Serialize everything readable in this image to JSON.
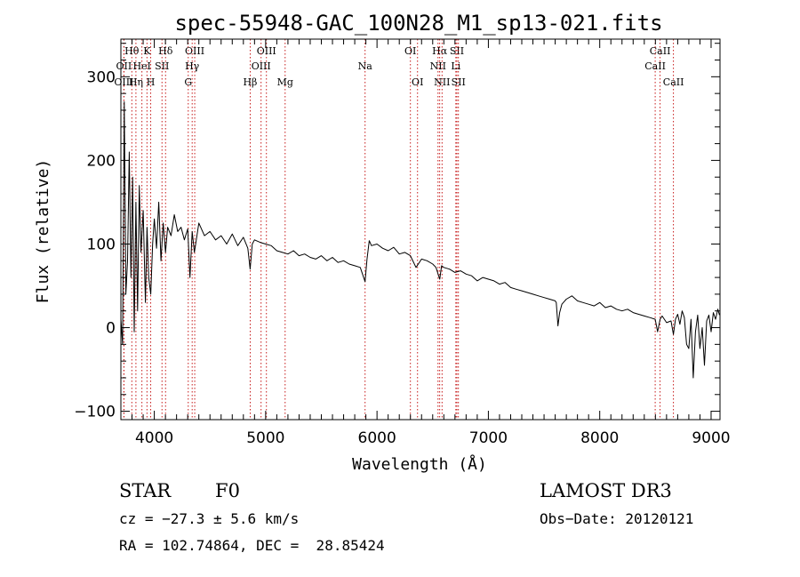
{
  "chart_data": {
    "type": "line",
    "title": "spec-55948-GAC_100N28_M1_sp13-021.fits",
    "xlabel": "Wavelength (Å)",
    "ylabel": "Flux (relative)",
    "xlim": [
      3700,
      9080
    ],
    "ylim": [
      -110,
      345
    ],
    "x_ticks": [
      4000,
      5000,
      6000,
      7000,
      8000,
      9000
    ],
    "y_ticks": [
      -100,
      0,
      100,
      200,
      300
    ],
    "x_tick_labels": [
      "4000",
      "5000",
      "6000",
      "7000",
      "8000",
      "9000"
    ],
    "y_tick_labels": [
      "−100",
      "0",
      "100",
      "200",
      "300"
    ],
    "series": [
      {
        "name": "Flux",
        "x": [
          3700,
          3715,
          3730,
          3745,
          3760,
          3775,
          3790,
          3805,
          3820,
          3835,
          3850,
          3865,
          3880,
          3900,
          3920,
          3935,
          3950,
          3968,
          3985,
          4000,
          4020,
          4040,
          4060,
          4080,
          4101,
          4120,
          4150,
          4180,
          4210,
          4240,
          4270,
          4300,
          4320,
          4340,
          4360,
          4400,
          4450,
          4500,
          4550,
          4600,
          4650,
          4700,
          4750,
          4800,
          4840,
          4861,
          4880,
          4900,
          4950,
          5000,
          5050,
          5100,
          5150,
          5200,
          5250,
          5300,
          5350,
          5400,
          5450,
          5500,
          5550,
          5600,
          5650,
          5700,
          5750,
          5800,
          5850,
          5893,
          5910,
          5930,
          5950,
          6000,
          6050,
          6100,
          6150,
          6200,
          6250,
          6300,
          6350,
          6400,
          6450,
          6500,
          6530,
          6563,
          6580,
          6600,
          6650,
          6700,
          6750,
          6800,
          6850,
          6900,
          6950,
          7000,
          7050,
          7100,
          7150,
          7200,
          7250,
          7300,
          7350,
          7400,
          7450,
          7500,
          7550,
          7600,
          7610,
          7625,
          7640,
          7660,
          7700,
          7750,
          7800,
          7850,
          7900,
          7950,
          8000,
          8050,
          8100,
          8150,
          8200,
          8250,
          8300,
          8350,
          8400,
          8450,
          8498,
          8520,
          8542,
          8560,
          8600,
          8640,
          8662,
          8680,
          8700,
          8720,
          8740,
          8760,
          8780,
          8800,
          8820,
          8840,
          8860,
          8880,
          8900,
          8920,
          8940,
          8960,
          8980,
          9000,
          9020,
          9040,
          9060,
          9075
        ],
        "y": [
          10,
          -20,
          270,
          40,
          80,
          210,
          60,
          180,
          -5,
          150,
          20,
          170,
          90,
          140,
          30,
          120,
          60,
          40,
          100,
          130,
          95,
          150,
          80,
          125,
          90,
          120,
          110,
          135,
          115,
          120,
          105,
          118,
          60,
          115,
          90,
          125,
          110,
          115,
          105,
          110,
          100,
          112,
          98,
          108,
          95,
          70,
          100,
          105,
          102,
          100,
          98,
          92,
          90,
          88,
          92,
          86,
          88,
          84,
          82,
          86,
          80,
          84,
          78,
          80,
          76,
          74,
          72,
          55,
          82,
          104,
          98,
          100,
          95,
          92,
          96,
          88,
          90,
          86,
          72,
          82,
          80,
          76,
          72,
          58,
          74,
          72,
          70,
          66,
          68,
          64,
          62,
          56,
          60,
          58,
          56,
          52,
          54,
          48,
          46,
          44,
          42,
          40,
          38,
          36,
          34,
          32,
          30,
          2,
          18,
          28,
          34,
          38,
          32,
          30,
          28,
          26,
          30,
          24,
          26,
          22,
          20,
          22,
          18,
          16,
          14,
          12,
          10,
          -5,
          10,
          14,
          6,
          8,
          -8,
          10,
          16,
          4,
          20,
          12,
          -20,
          -25,
          10,
          -60,
          -5,
          15,
          -25,
          0,
          -45,
          8,
          15,
          -5,
          18,
          10,
          22,
          15
        ]
      }
    ],
    "spectral_lines": [
      {
        "label": "Hθ",
        "wavelength": 3798,
        "row": 1
      },
      {
        "label": "OII",
        "wavelength": 3727,
        "row": 2
      },
      {
        "label": "OIII",
        "wavelength": 3727,
        "row": 3
      },
      {
        "label": "HeI",
        "wavelength": 3889,
        "row": 2
      },
      {
        "label": "Hη",
        "wavelength": 3835,
        "row": 3
      },
      {
        "label": "K",
        "wavelength": 3934,
        "row": 1
      },
      {
        "label": "SII",
        "wavelength": 4069,
        "row": 2
      },
      {
        "label": "H",
        "wavelength": 3968,
        "row": 3
      },
      {
        "label": "Hδ",
        "wavelength": 4101,
        "row": 1
      },
      {
        "label": "OIII",
        "wavelength": 4363,
        "row": 1
      },
      {
        "label": "Hγ",
        "wavelength": 4340,
        "row": 2
      },
      {
        "label": "G",
        "wavelength": 4305,
        "row": 3
      },
      {
        "label": "OIII",
        "wavelength": 5007,
        "row": 1
      },
      {
        "label": "OIII",
        "wavelength": 4959,
        "row": 2
      },
      {
        "label": "Hβ",
        "wavelength": 4861,
        "row": 3
      },
      {
        "label": "Mg",
        "wavelength": 5175,
        "row": 3
      },
      {
        "label": "Na",
        "wavelength": 5893,
        "row": 2
      },
      {
        "label": "OI",
        "wavelength": 6300,
        "row": 1
      },
      {
        "label": "OI",
        "wavelength": 6364,
        "row": 3
      },
      {
        "label": "Hα",
        "wavelength": 6563,
        "row": 1
      },
      {
        "label": "NII",
        "wavelength": 6548,
        "row": 2
      },
      {
        "label": "NII",
        "wavelength": 6584,
        "row": 3
      },
      {
        "label": "SII",
        "wavelength": 6717,
        "row": 1
      },
      {
        "label": "Li",
        "wavelength": 6708,
        "row": 2
      },
      {
        "label": "SII",
        "wavelength": 6731,
        "row": 3
      },
      {
        "label": "CaII",
        "wavelength": 8542,
        "row": 1
      },
      {
        "label": "CaII",
        "wavelength": 8498,
        "row": 2
      },
      {
        "label": "CaII",
        "wavelength": 8662,
        "row": 3
      }
    ]
  },
  "info": {
    "object_class": "STAR",
    "subclass": "F0",
    "survey": "LAMOST DR3",
    "redshift": "cz = −27.3 ± 5.6 km/s",
    "obs_date": "Obs−Date: 20120121",
    "coords": "RA = 102.74864, DEC =  28.85424"
  }
}
